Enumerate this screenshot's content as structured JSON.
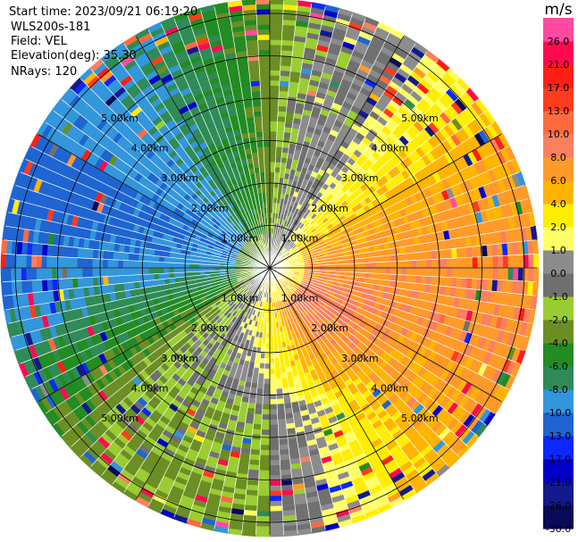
{
  "header": {
    "start_time": "Start time: 2023/09/21 06:19:20",
    "instrument": "WLS200s-181",
    "field": "Field: VEL",
    "elevation": "Elevation(deg): 35.30",
    "nrays": "NRays: 120"
  },
  "chart_data": {
    "type": "heatmap",
    "projection": "polar (PPI scan)",
    "field": "VEL",
    "unit": "m/s",
    "n_rays": 120,
    "range_rings_km": [
      1.0,
      2.0,
      3.0,
      4.0,
      5.0
    ],
    "ring_labels": [
      "1.00km",
      "2.00km",
      "3.00km",
      "4.00km",
      "5.00km"
    ],
    "max_range_km": 6.3,
    "colorbar": {
      "unit": "m/s",
      "boundaries": [
        -30.0,
        -26.0,
        -21.0,
        -17.0,
        -13.0,
        -10.0,
        -8.0,
        -6.0,
        -4.0,
        -2.0,
        -1.0,
        0.0,
        1.0,
        2.0,
        4.0,
        6.0,
        8.0,
        10.0,
        13.0,
        17.0,
        21.0,
        26.0
      ],
      "tick_labels": [
        "-30.0",
        "-26.0",
        "-21.0",
        "-17.0",
        "-13.0",
        "-10.0",
        "-8.0",
        "-6.0",
        "-4.0",
        "-2.0",
        "-1.0",
        "0.0",
        "1.0",
        "2.0",
        "4.0",
        "6.0",
        "8.0",
        "10.0",
        "13.0",
        "17.0",
        "21.0",
        "26.0"
      ],
      "colors": [
        "#0a0a5a",
        "#121a8c",
        "#0000c8",
        "#0a28ff",
        "#1e64d2",
        "#3296dc",
        "#2e8b57",
        "#228b22",
        "#6b8e23",
        "#9acd32",
        "#707070",
        "#8c8c8c",
        "#ffff66",
        "#ffee00",
        "#ffb400",
        "#ff9a28",
        "#fa8060",
        "#ff6a3d",
        "#ff3c1e",
        "#ff1e14",
        "#ff0a50",
        "#ff4aa0"
      ]
    },
    "pattern": {
      "approaching_sector_deg": [
        200,
        360
      ],
      "approaching_peak_deg": 300,
      "approaching_peak_value": -9.5,
      "receding_sector_deg": [
        40,
        170
      ],
      "receding_peak_deg": 100,
      "receding_peak_value": 7.5,
      "near_field_receding_deg": [
        120,
        190
      ]
    }
  }
}
